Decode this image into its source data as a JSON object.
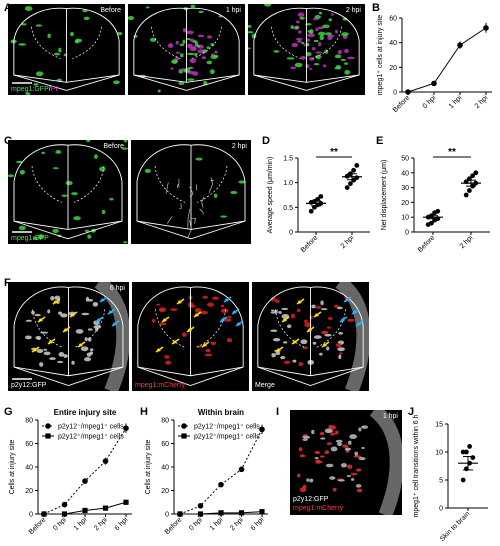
{
  "panels": {
    "A": {
      "letter": "A",
      "frames": [
        "Before",
        "1 hpi",
        "2 hpi"
      ],
      "legend_gfp": "mpeg1:GFP",
      "legend_sep": "/",
      "legend_pi": "PI"
    },
    "C": {
      "letter": "C",
      "frames": [
        "Before",
        "2 hpi"
      ],
      "legend": "mpeg1:GFP"
    },
    "F": {
      "letter": "F",
      "frame_label": "6 hpi",
      "legend_gfp": "p2y12:GFP",
      "legend_mch": "mpeg1:mCherry",
      "merge": "Merge"
    },
    "I": {
      "letter": "I",
      "frame_label": "1 hpi",
      "legend_gfp": "p2y12:GFP",
      "legend_mch": "mpeg1:mCherry"
    }
  },
  "chart_data": [
    {
      "id": "B",
      "letter": "B",
      "type": "line",
      "categories": [
        "Before",
        "0 hpi",
        "1 hpi",
        "2 hpi"
      ],
      "values": [
        0,
        7,
        38,
        52
      ],
      "err": [
        0,
        1,
        3,
        4
      ],
      "ylabel": "mpeg1⁺ cells at injury site",
      "ylim": [
        0,
        60
      ],
      "yticks": [
        0,
        20,
        40,
        60
      ]
    },
    {
      "id": "D",
      "letter": "D",
      "type": "scatter",
      "categories": [
        "Before",
        "2 hpi"
      ],
      "ylabel": "Average speed (μm/min)",
      "ylim": [
        0,
        1.5
      ],
      "yticks": [
        0,
        0.5,
        1.0,
        1.5
      ],
      "ytick_labels": [
        "0",
        "0.5",
        "1.0",
        "1.5"
      ],
      "means": [
        0.58,
        1.12
      ],
      "sems": [
        0.05,
        0.06
      ],
      "points": [
        [
          0.42,
          0.5,
          0.55,
          0.58,
          0.6,
          0.62,
          0.66,
          0.72
        ],
        [
          0.9,
          0.98,
          1.05,
          1.1,
          1.13,
          1.18,
          1.25,
          1.35
        ]
      ],
      "significance": "**"
    },
    {
      "id": "E",
      "letter": "E",
      "type": "scatter",
      "categories": [
        "Before",
        "2 hpi"
      ],
      "ylabel": "Net displacement (μm)",
      "ylim": [
        0,
        50
      ],
      "yticks": [
        0,
        10,
        20,
        30,
        40,
        50
      ],
      "means": [
        10,
        33
      ],
      "sems": [
        1,
        2
      ],
      "points": [
        [
          5,
          6,
          8,
          9,
          10,
          11,
          13,
          14
        ],
        [
          25,
          28,
          31,
          33,
          34,
          36,
          38,
          40
        ]
      ],
      "significance": "**"
    },
    {
      "id": "G",
      "letter": "G",
      "type": "line",
      "title": "Entire injury site",
      "categories": [
        "Before",
        "0 hpi",
        "1 hpi",
        "2 hpi",
        "6 hpi"
      ],
      "ylabel": "Cells at injury site",
      "ylim": [
        0,
        80
      ],
      "yticks": [
        0,
        20,
        40,
        60,
        80
      ],
      "series": [
        {
          "name": "p2y12⁻/mpeg1⁺ cells",
          "values": [
            0,
            8,
            28,
            45,
            73
          ],
          "err": [
            0,
            1,
            2,
            3,
            4
          ],
          "marker": "circle",
          "dash": true
        },
        {
          "name": "p2y12⁺/mpeg1⁺ cells",
          "values": [
            0,
            0,
            3,
            5,
            10
          ],
          "err": [
            0,
            0,
            1,
            1,
            1
          ],
          "marker": "square",
          "dash": false
        }
      ]
    },
    {
      "id": "H",
      "letter": "H",
      "type": "line",
      "title": "Within brain",
      "categories": [
        "Before",
        "0 hpi",
        "1 hpi",
        "2 hpi",
        "6 hpi"
      ],
      "ylabel": "Cells at injury site",
      "ylim": [
        0,
        80
      ],
      "yticks": [
        0,
        20,
        40,
        60,
        80
      ],
      "series": [
        {
          "name": "p2y12⁻/mpeg1⁺ cells",
          "values": [
            0,
            7,
            25,
            38,
            72
          ],
          "err": [
            0,
            1,
            2,
            2,
            4
          ],
          "marker": "circle",
          "dash": true
        },
        {
          "name": "p2y12⁺/mpeg1⁺ cells",
          "values": [
            0,
            0,
            1,
            1,
            2
          ],
          "err": [
            0,
            0,
            0,
            0,
            0
          ],
          "marker": "square",
          "dash": false
        }
      ]
    },
    {
      "id": "J",
      "letter": "J",
      "type": "scatter",
      "categories": [
        "Skin to brain"
      ],
      "ylabel": "mpeg1⁺ cell transitions within 6 h",
      "ylim": [
        0,
        15
      ],
      "yticks": [
        0,
        5,
        10,
        15
      ],
      "means": [
        8
      ],
      "sems": [
        1.2
      ],
      "points": [
        [
          5,
          7,
          8,
          9,
          10,
          10,
          11
        ]
      ]
    }
  ]
}
